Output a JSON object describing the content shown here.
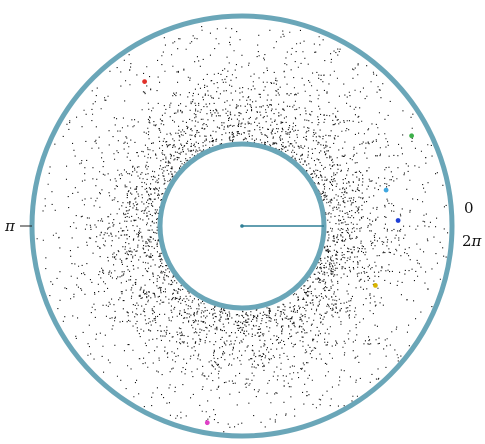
{
  "labels": {
    "pi": "π",
    "zero": "0",
    "two": "2",
    "pi_sym": "π"
  },
  "colors": {
    "ring_fill": "#6aa6b8",
    "ring_stroke": "#3f7f93",
    "dots": "#111111",
    "radius_line": "#2f7f96",
    "markers": [
      "#e0302a",
      "#3db04a",
      "#3fa7e0",
      "#1e3fd6",
      "#d8b400",
      "#e040c8"
    ]
  },
  "markers": [
    {
      "name": "red",
      "angle_deg": 124,
      "radius": 0.72
    },
    {
      "name": "green",
      "angle_deg": 28,
      "radius": 0.86
    },
    {
      "name": "cyan",
      "angle_deg": 14,
      "radius": 0.52
    },
    {
      "name": "blue",
      "angle_deg": 2,
      "radius": 0.58
    },
    {
      "name": "yellow",
      "angle_deg": -24,
      "radius": 0.5
    },
    {
      "name": "magenta",
      "angle_deg": -100,
      "radius": 0.92
    }
  ]
}
